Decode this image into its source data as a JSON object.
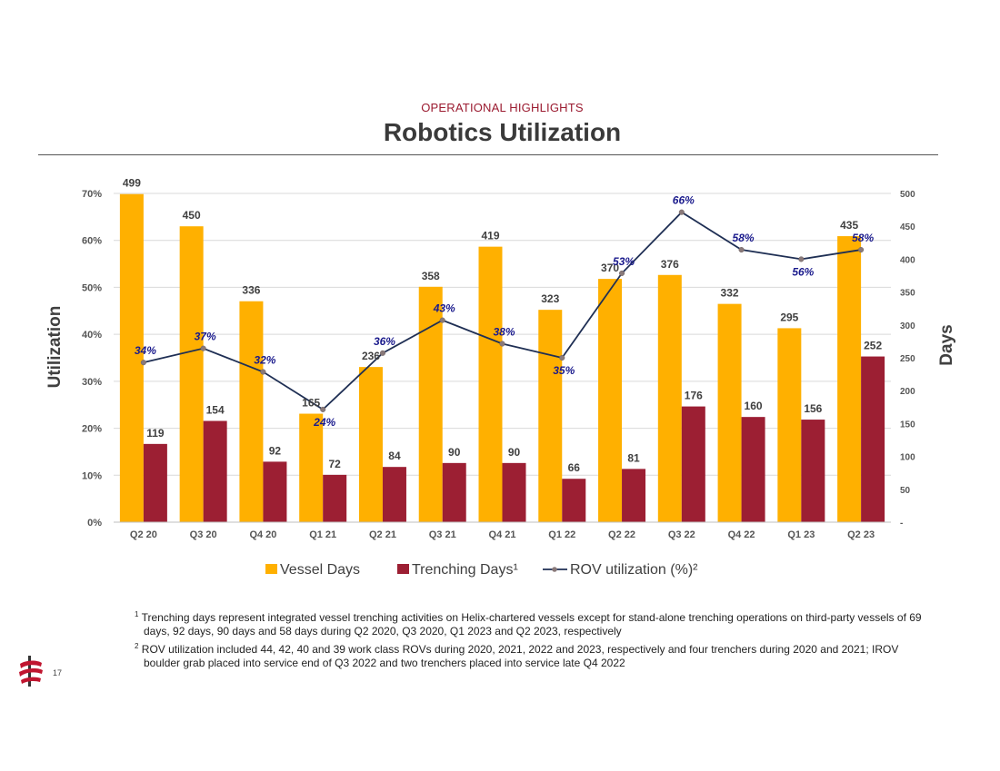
{
  "header": {
    "section_label": "OPERATIONAL HIGHLIGHTS",
    "title": "Robotics Utilization"
  },
  "chart_data": {
    "type": "bar",
    "categories": [
      "Q2 20",
      "Q3 20",
      "Q4 20",
      "Q1 21",
      "Q2 21",
      "Q3 21",
      "Q4 21",
      "Q1 22",
      "Q2 22",
      "Q3 22",
      "Q4 22",
      "Q1 23",
      "Q2 23"
    ],
    "series": [
      {
        "name": "Vessel Days",
        "type": "bar",
        "axis": "right",
        "color": "#ffb000",
        "values": [
          499,
          450,
          336,
          165,
          236,
          358,
          419,
          323,
          370,
          376,
          332,
          295,
          435
        ]
      },
      {
        "name": "Trenching Days¹",
        "type": "bar",
        "axis": "right",
        "color": "#9c1f33",
        "values": [
          119,
          154,
          92,
          72,
          84,
          90,
          90,
          66,
          81,
          176,
          160,
          156,
          252
        ]
      },
      {
        "name": "ROV utilization (%)²",
        "type": "line",
        "axis": "left",
        "color": "#1f2f54",
        "values": [
          34,
          37,
          32,
          24,
          36,
          43,
          38,
          35,
          53,
          66,
          58,
          56,
          58
        ]
      }
    ],
    "ylabel_left": "Utilization",
    "ylabel_right": "Days",
    "ylim_left": [
      0,
      70
    ],
    "ylim_right": [
      0,
      500
    ],
    "left_ticks": [
      "0%",
      "10%",
      "20%",
      "30%",
      "40%",
      "50%",
      "60%",
      "70%"
    ],
    "right_ticks": [
      "-",
      "50",
      "100",
      "150",
      "200",
      "250",
      "300",
      "350",
      "400",
      "450",
      "500"
    ],
    "grid": true,
    "legend_position": "bottom"
  },
  "footnotes": {
    "note1_marker": "1",
    "note1": "Trenching days represent integrated vessel trenching activities on Helix-chartered vessels except for stand-alone trenching operations on third-party vessels of 69 days, 92 days, 90 days and 58 days during Q2 2020, Q3 2020, Q1 2023 and Q2 2023, respectively",
    "note2_marker": "2",
    "note2": "ROV utilization included 44, 42, 40 and 39 work class ROVs during 2020, 2021, 2022 and 2023, respectively and four trenchers during 2020 and 2021; IROV boulder grab placed into service end of Q3 2022 and two trenchers placed into service late Q4 2022"
  },
  "page": {
    "number": "17"
  },
  "icons": {
    "logo": "helix-logo-icon"
  }
}
